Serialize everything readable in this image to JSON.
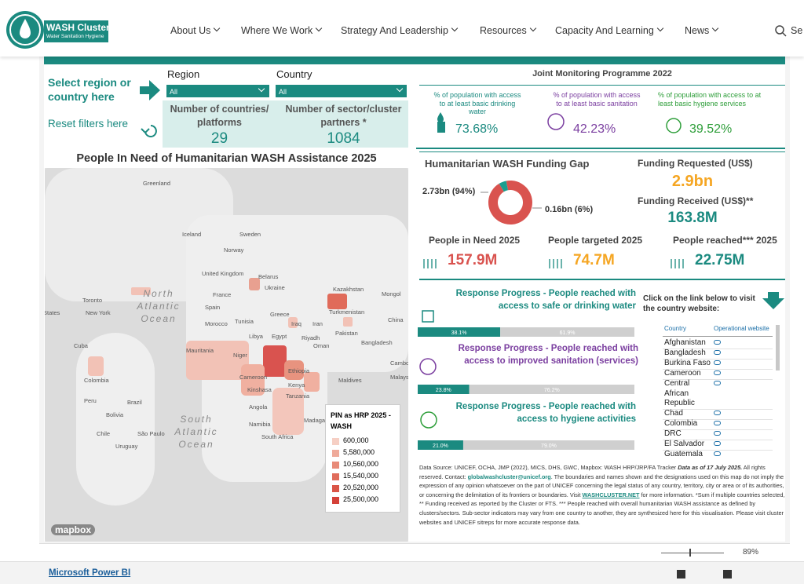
{
  "nav": {
    "logo_title": "WASH Cluster",
    "logo_subtitle": "Water Sanitation Hygiene",
    "items": [
      "About Us",
      "Where We Work",
      "Strategy And Leadership",
      "Resources",
      "Capacity And Learning",
      "News"
    ],
    "search": "Se"
  },
  "filters": {
    "prompt": "Select region or country here",
    "reset": "Reset filters here",
    "region_label": "Region",
    "region_value": "All",
    "country_label": "Country",
    "country_value": "All"
  },
  "kpis": {
    "countries_label": "Number of countries/ platforms",
    "countries_value": "29",
    "partners_label": "Number of sector/cluster partners *",
    "partners_value": "1084"
  },
  "map": {
    "title": "People In Need of Humanitarian WASH Assistance 2025",
    "labels": [
      "Greenland",
      "Iceland",
      "Sweden",
      "Norway",
      "United Kingdom",
      "Belarus",
      "Ukraine",
      "Kazakhstan",
      "Mongol",
      "France",
      "Spain",
      "Turkmenistan",
      "China",
      "Toronto",
      "New York",
      "States",
      "Morocco",
      "Tunisia",
      "Greece",
      "Iraq",
      "Iran",
      "Libya",
      "Egypt",
      "Riyadh",
      "Oman",
      "Pakistan",
      "Bangladesh",
      "Cuba",
      "Mauritania",
      "Niger",
      "Ethiopia",
      "Cambo",
      "Cameroon",
      "Kenya",
      "Maldives",
      "Malays",
      "Colombia",
      "Kinshasa",
      "Tanzania",
      "Peru",
      "Brazil",
      "Angola",
      "Bolivia",
      "Madagascar",
      "Namibia",
      "Chile",
      "São Paulo",
      "South Africa",
      "Uruguay"
    ],
    "oceans": [
      "North Atlantic Ocean",
      "South Atlantic Ocean"
    ],
    "legend_title": "PIN as HRP 2025 - WASH",
    "legend": [
      "600,000",
      "5,580,000",
      "10,560,000",
      "15,540,000",
      "20,520,000",
      "25,500,000"
    ],
    "attribution": "mapbox"
  },
  "jmp": {
    "title": "Joint Monitoring Programme 2022",
    "items": [
      {
        "label": "% of population with access to at least basic drinking water",
        "value": "73.68%"
      },
      {
        "label": "% of population with access to at least basic sanitation",
        "value": "42.23%"
      },
      {
        "label": "% of population with access to at least basic hygiene services",
        "value": "39.52%"
      }
    ]
  },
  "funding": {
    "title": "Humanitarian WASH Funding Gap",
    "values": [
      2.73,
      0.16
    ],
    "value_labels": [
      "2.73bn (94%)",
      "0.16bn (6%)"
    ],
    "requested_label": "Funding Requested (US$)",
    "requested_value": "2.9bn",
    "received_label": "Funding Received (US$)**",
    "received_value": "163.8M"
  },
  "people": [
    {
      "label": "People in Need 2025",
      "value": "157.9M"
    },
    {
      "label": "People targeted 2025",
      "value": "74.7M"
    },
    {
      "label": "People reached*** 2025",
      "value": "22.75M"
    }
  ],
  "progress": [
    {
      "title": "Response Progress - People reached with access to safe or drinking water",
      "values": [
        38.1,
        61.9
      ],
      "value_labels": [
        "38.1%",
        "61.9%"
      ]
    },
    {
      "title": "Response Progress - People reached with access to improved sanitation (services)",
      "values": [
        23.8,
        76.2
      ],
      "value_labels": [
        "23.8%",
        "76.2%"
      ]
    },
    {
      "title": "Response Progress - People reached with access to hygiene activities",
      "values": [
        21.0,
        79.0
      ],
      "value_labels": [
        "21.0%",
        "79.0%"
      ]
    }
  ],
  "country_list": {
    "prompt": "Click on the link below to visit the country website:",
    "header": [
      "Country",
      "Operational website"
    ],
    "countries": [
      "Afghanistan",
      "Bangladesh",
      "Burkina Faso",
      "Cameroon",
      "Central African Republic",
      "Chad",
      "Colombia",
      "DRC",
      "El Salvador",
      "Guatemala"
    ]
  },
  "note": [
    "Data Source: UNICEF, OCHA, JMP (2022), MICS, DHS, GWC, Mapbox: WASH HRP/JRP/FA Tracker ",
    "Data as of 17 July 2025.",
    " All rights reserved. Contact: ",
    "globalwashcluster@unicef.org",
    ". The boundaries and names shown and the designations used on this map do not imply the expression of any opinion whatsoever on the part of UNICEF concerning the legal status of any country, territory, city or area or of its authorities, or concerning the delimitation of its frontiers or boundaries.  Visit ",
    "WASHCLUSTER.NET",
    " for more information. *Sum if multiple countries selected, ** Funding received as reported by the Cluster or FTS. *** People reached with overall humanitarian WASH assistance as defined by clusters/sectors. Sub-sector indicators may vary from one country to another, they are synthesized here for this visualisation. Please visit cluster websites and UNICEF sitreps for more accurate response data."
  ],
  "footer": {
    "zoom": "89%",
    "powerbi": "Microsoft Power BI"
  }
}
